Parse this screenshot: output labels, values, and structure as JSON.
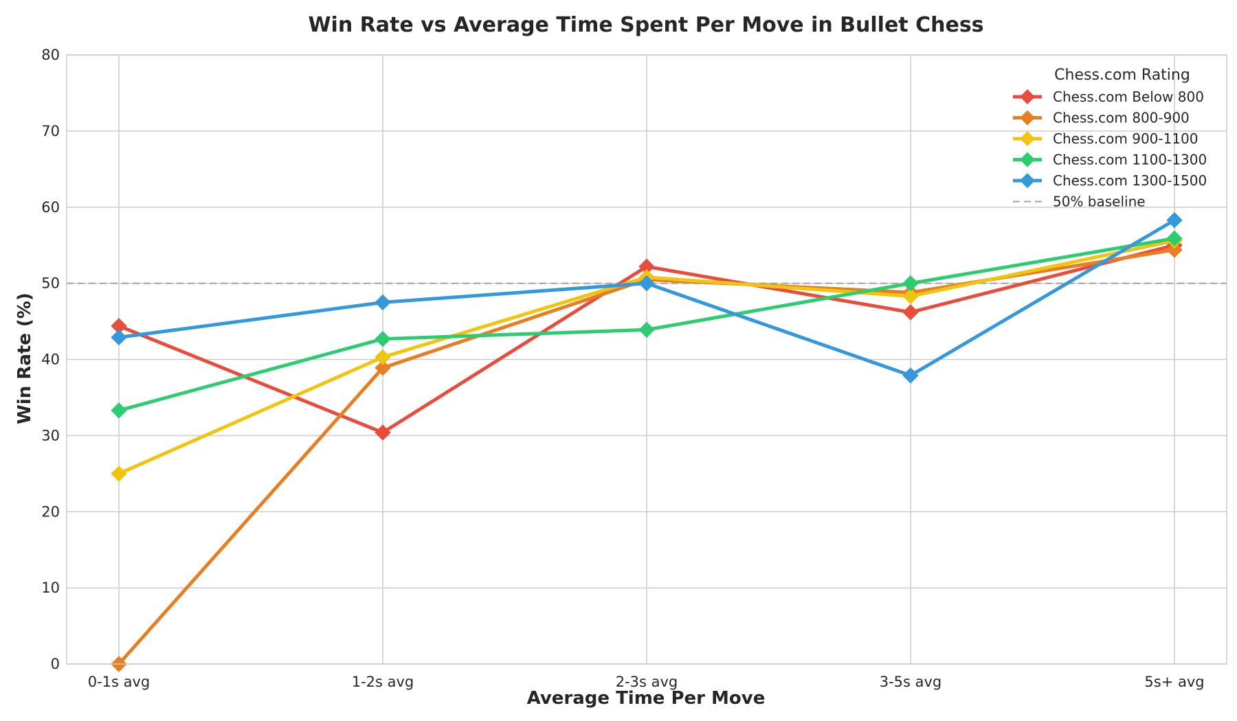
{
  "chart_data": {
    "type": "line",
    "title": "Win Rate vs Average Time Spent Per Move in Bullet Chess",
    "xlabel": "Average Time Per Move",
    "ylabel": "Win Rate (%)",
    "categories": [
      "0-1s avg",
      "1-2s avg",
      "2-3s avg",
      "3-5s avg",
      "5s+ avg"
    ],
    "ylim": [
      0,
      80
    ],
    "yticks": [
      0,
      10,
      20,
      30,
      40,
      50,
      60,
      70,
      80
    ],
    "grid": true,
    "legend": {
      "title": "Chess.com Rating",
      "placement": "top-right"
    },
    "series": [
      {
        "name": "Chess.com Below 800",
        "color": "#e74c3c",
        "values": [
          44.4,
          30.4,
          52.2,
          46.2,
          55.0
        ]
      },
      {
        "name": "Chess.com 800-900",
        "color": "#e67e22",
        "values": [
          0.0,
          38.9,
          50.5,
          48.8,
          54.4
        ]
      },
      {
        "name": "Chess.com 900-1100",
        "color": "#f1c40f",
        "values": [
          25.0,
          40.3,
          50.8,
          48.3,
          55.6
        ]
      },
      {
        "name": "Chess.com 1100-1300",
        "color": "#2ecc71",
        "values": [
          33.3,
          42.7,
          43.9,
          50.0,
          55.9
        ]
      },
      {
        "name": "Chess.com 1300-1500",
        "color": "#3498db",
        "values": [
          42.9,
          47.5,
          50.0,
          37.9,
          58.3
        ]
      }
    ],
    "baseline": {
      "name": "50% baseline",
      "value": 50,
      "color": "#a0a0a0"
    }
  }
}
